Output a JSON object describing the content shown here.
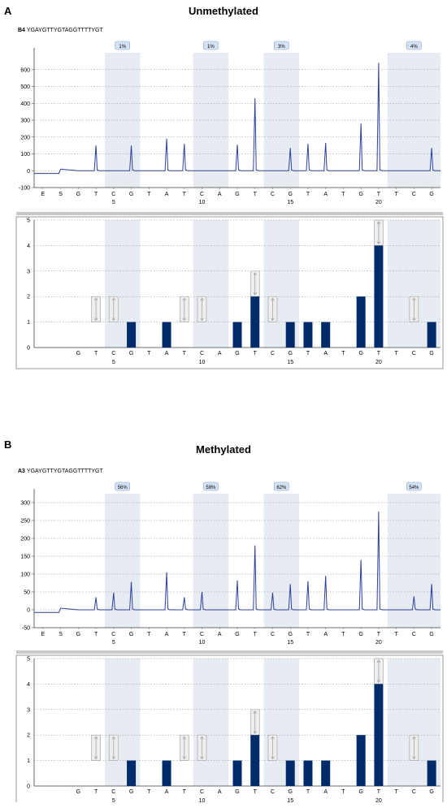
{
  "panels": [
    {
      "letter": "A",
      "title": "Unmethylated",
      "well": "B4",
      "sequence": "YGAYGTTYGTAGGTTTTYGT",
      "tick_numbers": [
        "5",
        "10",
        "15",
        "20"
      ],
      "colors": {
        "trace": "#2e3f9c",
        "bar": "#002b6b",
        "shade": "#e7ebf2",
        "badge": "#d4e2f5"
      }
    },
    {
      "letter": "B",
      "title": "Methylated",
      "well": "A3",
      "sequence": "YGAYGTTYGTAGGTTTTYGT",
      "tick_numbers": [
        "5",
        "10",
        "15",
        "20"
      ],
      "colors": {
        "trace": "#2e3f9c",
        "bar": "#002b6b",
        "shade": "#e7ebf2",
        "badge": "#d4e2f5"
      }
    }
  ],
  "chart_data": [
    {
      "type": "line",
      "panel": "A",
      "title": "Unmethylated",
      "subtitle": "B4 YGAYGTTYGTAGGTTTTYGT",
      "x_categories": [
        "E",
        "S",
        "G",
        "T",
        "C",
        "G",
        "T",
        "A",
        "T",
        "C",
        "A",
        "G",
        "T",
        "C",
        "G",
        "T",
        "A",
        "T",
        "G",
        "T",
        "T",
        "C",
        "G"
      ],
      "x_ticks": [
        "5",
        "10",
        "15",
        "20"
      ],
      "ylim": [
        -100,
        700
      ],
      "yticks": [
        -100,
        0,
        100,
        200,
        300,
        400,
        500,
        600
      ],
      "grid": true,
      "peak_heights": [
        0,
        10,
        0,
        150,
        0,
        150,
        0,
        190,
        160,
        0,
        0,
        155,
        430,
        0,
        135,
        160,
        165,
        0,
        280,
        640,
        0,
        0,
        135
      ],
      "cpg_sites": [
        {
          "label": "1%",
          "from": "T",
          "to": "C",
          "positions": [
            4,
            5
          ]
        },
        {
          "label": "1%",
          "from": "T",
          "to": "C",
          "positions": [
            9,
            10
          ]
        },
        {
          "label": "3%",
          "from": "T",
          "to": "C",
          "positions": [
            13,
            14
          ]
        },
        {
          "label": "4%",
          "from": "T",
          "to": "C",
          "positions": [
            20,
            22
          ]
        }
      ]
    },
    {
      "type": "bar",
      "panel": "A",
      "categories": [
        "G",
        "T",
        "C",
        "G",
        "T",
        "A",
        "T",
        "C",
        "A",
        "G",
        "T",
        "C",
        "G",
        "T",
        "A",
        "T",
        "G",
        "T",
        "T",
        "C",
        "G"
      ],
      "x_ticks": [
        "5",
        "10",
        "15",
        "20"
      ],
      "values": [
        0,
        1,
        1,
        1,
        0,
        1,
        1,
        1,
        0,
        1,
        2,
        1,
        1,
        1,
        1,
        0,
        2,
        4,
        0,
        1,
        1
      ],
      "variable": [
        false,
        true,
        true,
        false,
        false,
        false,
        true,
        true,
        false,
        false,
        true,
        true,
        false,
        false,
        false,
        false,
        false,
        true,
        false,
        true,
        false
      ],
      "ylim": [
        0,
        5
      ],
      "yticks": [
        0,
        1,
        2,
        3,
        4,
        5
      ],
      "grid": true
    },
    {
      "type": "line",
      "panel": "B",
      "title": "Methylated",
      "subtitle": "A3 YGAYGTTYGTAGGTTTTYGT",
      "x_categories": [
        "E",
        "S",
        "G",
        "T",
        "C",
        "G",
        "T",
        "A",
        "T",
        "C",
        "A",
        "G",
        "T",
        "C",
        "G",
        "T",
        "A",
        "T",
        "G",
        "T",
        "T",
        "C",
        "G"
      ],
      "x_ticks": [
        "5",
        "10",
        "15",
        "20"
      ],
      "ylim": [
        -50,
        325
      ],
      "yticks": [
        -50,
        0,
        50,
        100,
        150,
        200,
        250,
        300
      ],
      "grid": true,
      "peak_heights": [
        0,
        15,
        0,
        35,
        48,
        78,
        0,
        105,
        35,
        50,
        0,
        82,
        180,
        48,
        72,
        80,
        95,
        0,
        140,
        275,
        0,
        38,
        72
      ],
      "cpg_sites": [
        {
          "label": "56%",
          "from": "T",
          "to": "C",
          "positions": [
            4,
            5
          ]
        },
        {
          "label": "58%",
          "from": "T",
          "to": "C",
          "positions": [
            9,
            10
          ]
        },
        {
          "label": "62%",
          "from": "T",
          "to": "C",
          "positions": [
            13,
            14
          ]
        },
        {
          "label": "54%",
          "from": "T",
          "to": "C",
          "positions": [
            20,
            22
          ]
        }
      ]
    },
    {
      "type": "bar",
      "panel": "B",
      "categories": [
        "G",
        "T",
        "C",
        "G",
        "T",
        "A",
        "T",
        "C",
        "A",
        "G",
        "T",
        "C",
        "G",
        "T",
        "A",
        "T",
        "G",
        "T",
        "T",
        "C",
        "G"
      ],
      "x_ticks": [
        "5",
        "10",
        "15",
        "20"
      ],
      "values": [
        0,
        1,
        1,
        1,
        0,
        1,
        1,
        1,
        0,
        1,
        2,
        1,
        1,
        1,
        1,
        0,
        2,
        4,
        0,
        1,
        1
      ],
      "variable": [
        false,
        true,
        true,
        false,
        false,
        false,
        true,
        true,
        false,
        false,
        true,
        true,
        false,
        false,
        false,
        false,
        false,
        true,
        false,
        true,
        false
      ],
      "ylim": [
        0,
        5
      ],
      "yticks": [
        0,
        1,
        2,
        3,
        4,
        5
      ],
      "grid": true
    }
  ]
}
